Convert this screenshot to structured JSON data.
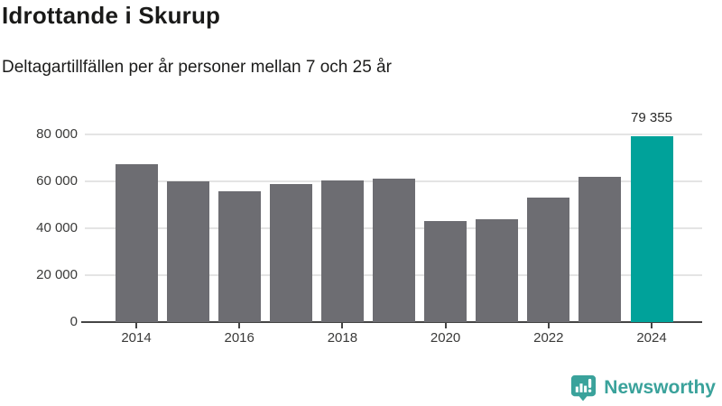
{
  "header": {
    "title": "Idrottande i Skurup",
    "subtitle": "Deltagartillfällen per år personer mellan 7 och 25 år"
  },
  "chart_data": {
    "type": "bar",
    "title": "Idrottande i Skurup",
    "subtitle": "Deltagartillfällen per år personer mellan 7 och 25 år",
    "xlabel": "",
    "ylabel": "",
    "categories": [
      "2014",
      "2015",
      "2016",
      "2017",
      "2018",
      "2019",
      "2020",
      "2021",
      "2022",
      "2023",
      "2024"
    ],
    "values": [
      67500,
      60000,
      55700,
      59000,
      60300,
      61200,
      42900,
      43700,
      53000,
      62000,
      79355
    ],
    "highlight_index": 10,
    "highlight_label": "79 355",
    "bar_color": "#6d6d72",
    "highlight_color": "#00a29a",
    "yticks": [
      0,
      20000,
      40000,
      60000,
      80000
    ],
    "ytick_labels": [
      "0",
      "20 000",
      "40 000",
      "60 000",
      "80 000"
    ],
    "xtick_labels": [
      "2014",
      "2016",
      "2018",
      "2020",
      "2022",
      "2024"
    ],
    "ylim": [
      0,
      84000
    ],
    "grid": true,
    "legend": "none",
    "gridline_color": "#e4e4e4",
    "axis_color": "#454545"
  },
  "footer": {
    "brand": "Newsworthy",
    "brand_color": "#3aa29b",
    "logo_icon": "bar-chart-speech-bubble-icon"
  }
}
